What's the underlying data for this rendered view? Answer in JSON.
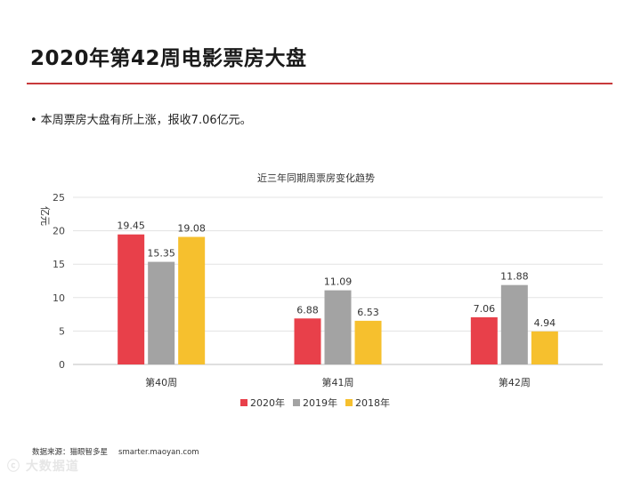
{
  "slide": {
    "title": "2020年第42周电影票房大盘",
    "bullet_marker": "•",
    "bullet_text": "本周票房大盘有所上涨，报收7.06亿元。",
    "source_label": "数据来源：猫眼智多星",
    "source_url": "smarter.maoyan.com",
    "watermark": "ⓒ 大数据道"
  },
  "colors": {
    "accent": "#c8393b",
    "series_2020": "#e8404a",
    "series_2019": "#a3a3a3",
    "series_2018": "#f6c02e"
  },
  "chart_data": {
    "type": "bar",
    "title": "近三年同期周票房变化趋势",
    "ylabel": "亿元",
    "xlabel": "",
    "ylim": [
      0,
      25
    ],
    "yticks": [
      0,
      5,
      10,
      15,
      20,
      25
    ],
    "grid": true,
    "legend_position": "bottom",
    "categories": [
      "第40周",
      "第41周",
      "第42周"
    ],
    "series": [
      {
        "name": "2020年",
        "color": "#e8404a",
        "values": [
          19.45,
          6.88,
          7.06
        ]
      },
      {
        "name": "2019年",
        "color": "#a3a3a3",
        "values": [
          15.35,
          11.09,
          11.88
        ]
      },
      {
        "name": "2018年",
        "color": "#f6c02e",
        "values": [
          19.08,
          6.53,
          4.94
        ]
      }
    ]
  }
}
